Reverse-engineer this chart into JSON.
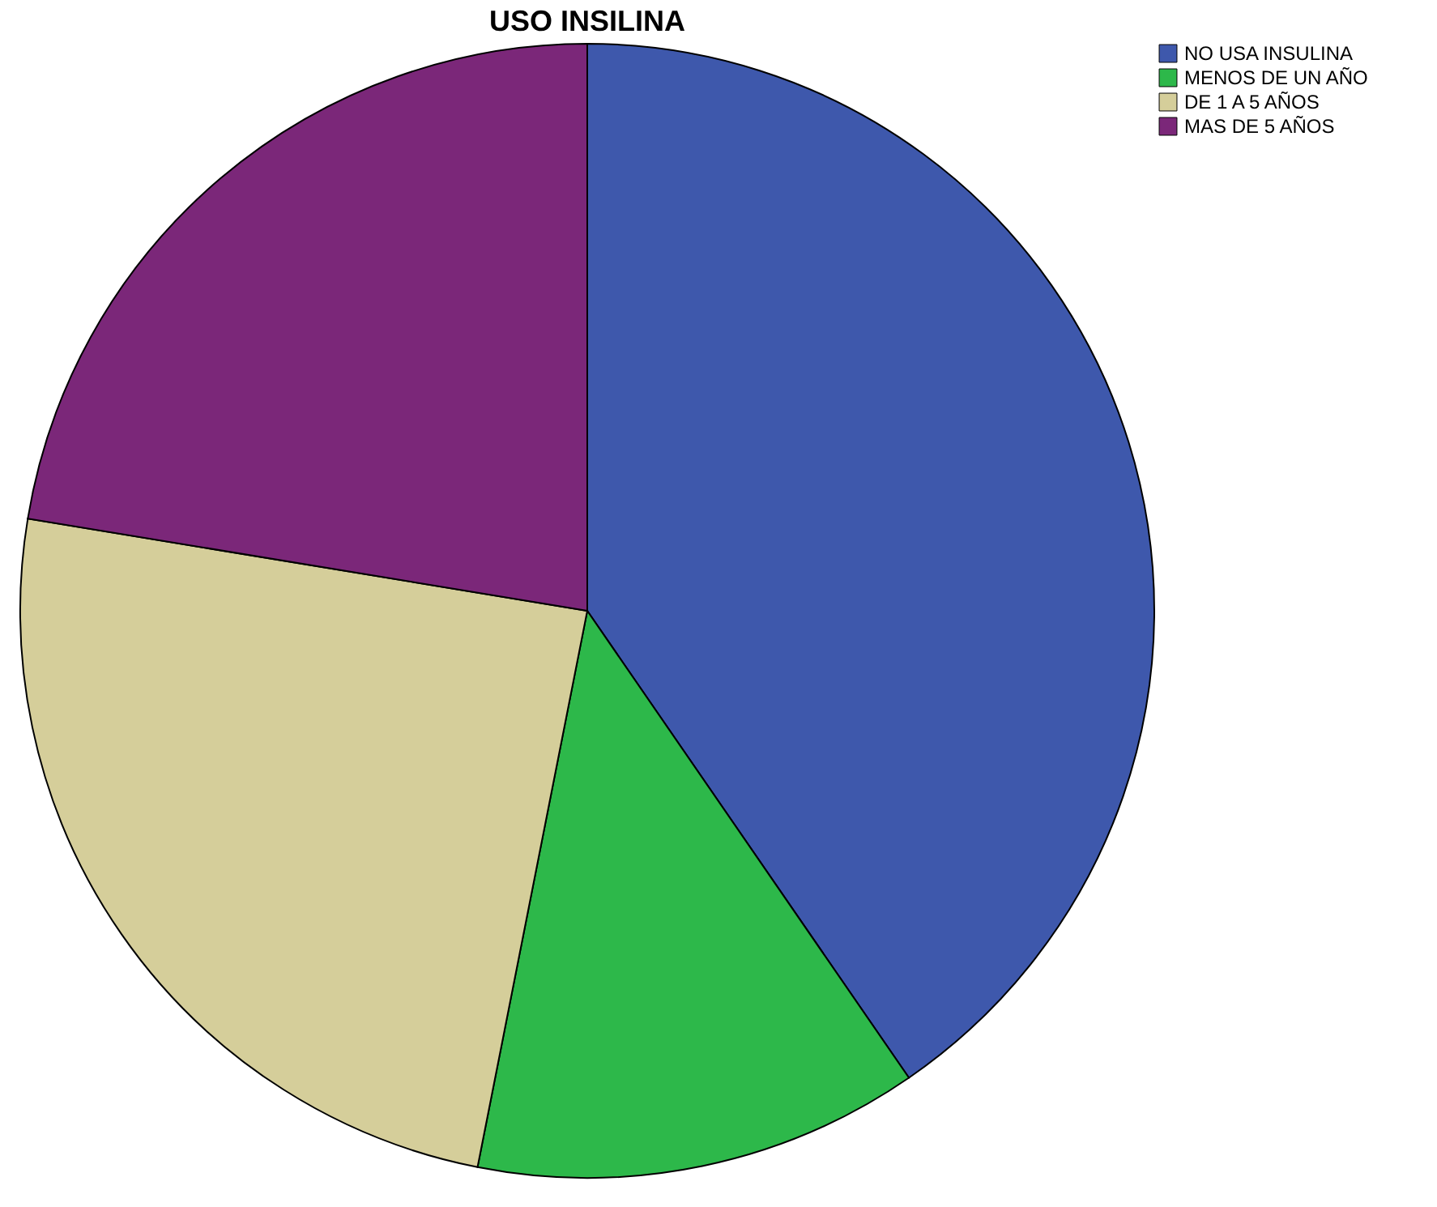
{
  "chart_data": {
    "type": "pie",
    "title": "USO INSILINA",
    "categories": [
      "NO USA INSULINA",
      "MENOS DE UN AÑO",
      "DE 1  A 5 AÑOS",
      "MAS DE 5 AÑOS"
    ],
    "values": [
      40.4,
      12.7,
      24.5,
      22.4
    ],
    "colors": [
      "#3e58ac",
      "#2db84a",
      "#d5ce9a",
      "#7b2779"
    ],
    "legend": "top right"
  }
}
